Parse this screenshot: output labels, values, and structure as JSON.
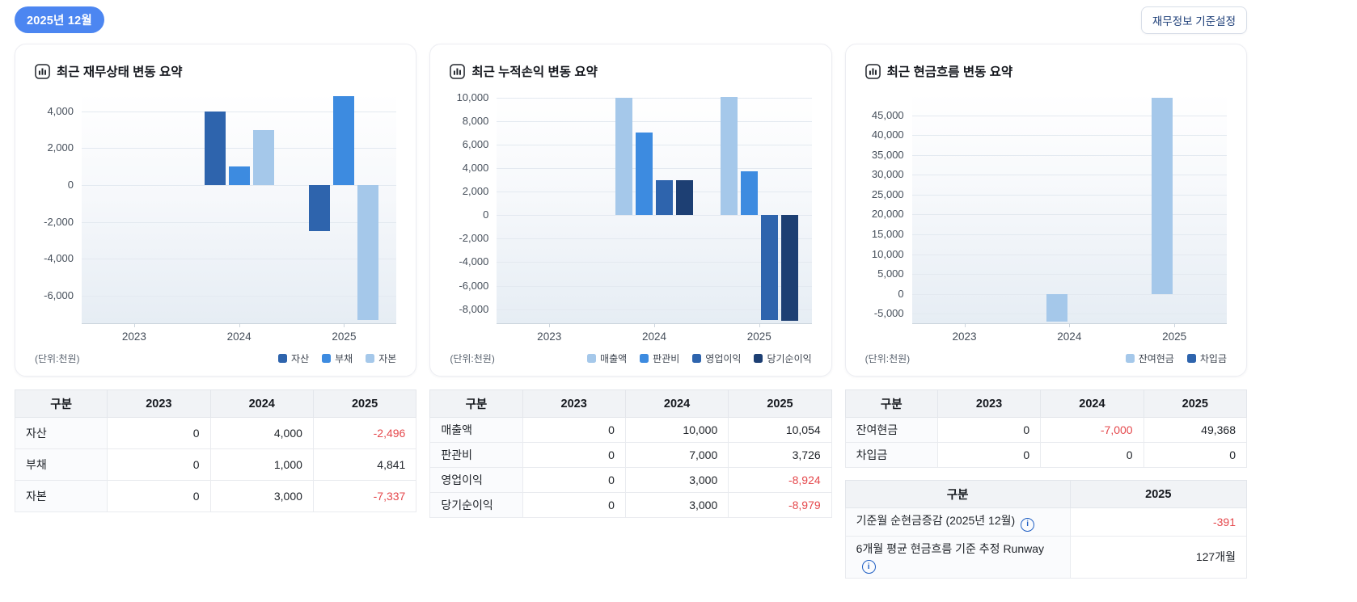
{
  "header": {
    "month_badge": "2025년 12월",
    "settings_button": "재무정보 기준설정"
  },
  "colors": {
    "badge_blue": "#4C86F1",
    "dark_blue": "#2E64AD",
    "bright_blue": "#3D8BE0",
    "light_blue": "#A5C8EA",
    "navy": "#1D3F73",
    "negative_red": "#E5494D"
  },
  "chart_data": [
    {
      "type": "bar",
      "title": "최근 재무상태 변동 요약",
      "unit": "(단위:천원)",
      "categories": [
        "2023",
        "2024",
        "2025"
      ],
      "series": [
        {
          "name": "자산",
          "color": "#2E64AD",
          "values": [
            0,
            4000,
            -2496
          ]
        },
        {
          "name": "부채",
          "color": "#3D8BE0",
          "values": [
            0,
            1000,
            4841
          ]
        },
        {
          "name": "자본",
          "color": "#A5C8EA",
          "values": [
            0,
            3000,
            -7337
          ]
        }
      ],
      "y_ticks": [
        4000,
        2000,
        0,
        -2000,
        -4000,
        -6000
      ],
      "ylim": [
        -7500,
        5000
      ],
      "grid": true,
      "legend_position": "bottom-right"
    },
    {
      "type": "bar",
      "title": "최근 누적손익 변동 요약",
      "unit": "(단위:천원)",
      "categories": [
        "2023",
        "2024",
        "2025"
      ],
      "series": [
        {
          "name": "매출액",
          "color": "#A5C8EA",
          "values": [
            0,
            10000,
            10054
          ]
        },
        {
          "name": "판관비",
          "color": "#3D8BE0",
          "values": [
            0,
            7000,
            3726
          ]
        },
        {
          "name": "영업이익",
          "color": "#2E64AD",
          "values": [
            0,
            3000,
            -8924
          ]
        },
        {
          "name": "당기순이익",
          "color": "#1D3F73",
          "values": [
            0,
            3000,
            -8979
          ]
        }
      ],
      "y_ticks": [
        10000,
        8000,
        6000,
        4000,
        2000,
        0,
        -2000,
        -4000,
        -6000,
        -8000
      ],
      "ylim": [
        -9200,
        10400
      ],
      "grid": true,
      "legend_position": "bottom-right"
    },
    {
      "type": "bar",
      "title": "최근 현금흐름 변동 요약",
      "unit": "(단위:천원)",
      "categories": [
        "2023",
        "2024",
        "2025"
      ],
      "series": [
        {
          "name": "잔여현금",
          "color": "#A5C8EA",
          "values": [
            0,
            -7000,
            49368
          ]
        },
        {
          "name": "차입금",
          "color": "#2E64AD",
          "values": [
            0,
            0,
            0
          ]
        }
      ],
      "y_ticks": [
        45000,
        40000,
        35000,
        30000,
        25000,
        20000,
        15000,
        10000,
        5000,
        0,
        -5000
      ],
      "ylim": [
        -7400,
        50600
      ],
      "grid": true,
      "legend_position": "bottom-right"
    }
  ],
  "tables": [
    {
      "headers": [
        "구분",
        "2023",
        "2024",
        "2025"
      ],
      "rows": [
        {
          "label": "자산",
          "values": [
            "0",
            "4,000",
            "-2,496"
          ]
        },
        {
          "label": "부채",
          "values": [
            "0",
            "1,000",
            "4,841"
          ]
        },
        {
          "label": "자본",
          "values": [
            "0",
            "3,000",
            "-7,337"
          ]
        }
      ]
    },
    {
      "headers": [
        "구분",
        "2023",
        "2024",
        "2025"
      ],
      "rows": [
        {
          "label": "매출액",
          "values": [
            "0",
            "10,000",
            "10,054"
          ]
        },
        {
          "label": "판관비",
          "values": [
            "0",
            "7,000",
            "3,726"
          ]
        },
        {
          "label": "영업이익",
          "values": [
            "0",
            "3,000",
            "-8,924"
          ]
        },
        {
          "label": "당기순이익",
          "values": [
            "0",
            "3,000",
            "-8,979"
          ]
        }
      ]
    },
    {
      "headers": [
        "구분",
        "2023",
        "2024",
        "2025"
      ],
      "rows": [
        {
          "label": "잔여현금",
          "values": [
            "0",
            "-7,000",
            "49,368"
          ]
        },
        {
          "label": "차입금",
          "values": [
            "0",
            "0",
            "0"
          ]
        }
      ]
    }
  ],
  "runway_table": {
    "headers": [
      "구분",
      "2025"
    ],
    "rows": [
      {
        "label": "기준월 순현금증감 (2025년 12월)",
        "info": true,
        "values": [
          "-391"
        ]
      },
      {
        "label": "6개월 평균 현금흐름 기준 추정 Runway",
        "info": true,
        "values": [
          "127개월"
        ]
      }
    ]
  }
}
